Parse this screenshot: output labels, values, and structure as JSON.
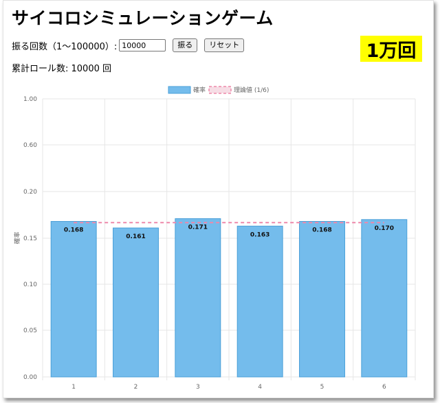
{
  "page": {
    "title": "サイコロシミュレーションゲーム",
    "roll_label": "振る回数（1〜100000）:",
    "roll_value": "10000",
    "roll_button": "振る",
    "reset_button": "リセット",
    "total_text": "累計ロール数: 10000 回",
    "badge_text": "1万回"
  },
  "colors": {
    "bar_fill": "#74bcec",
    "bar_border": "#4a9fd8",
    "theory_line": "#ee88aa",
    "badge_bg": "#ffff00"
  },
  "chart_data": {
    "type": "bar",
    "categories": [
      "1",
      "2",
      "3",
      "4",
      "5",
      "6"
    ],
    "series": [
      {
        "name": "確率",
        "values": [
          0.168,
          0.161,
          0.171,
          0.163,
          0.168,
          0.17
        ]
      }
    ],
    "data_labels": [
      "0.168",
      "0.161",
      "0.171",
      "0.163",
      "0.168",
      "0.170"
    ],
    "theory": {
      "name": "理論値 (1/6)",
      "value": 0.1667
    },
    "ylabel": "確率",
    "xlabel": "",
    "ylim": [
      0,
      1
    ],
    "y_ticks": [
      {
        "label": "1.00",
        "value": 1.0
      },
      {
        "label": "0.60",
        "value": 0.6
      },
      {
        "label": "0.20",
        "value": 0.2
      },
      {
        "label": "0.15",
        "value": 0.15
      },
      {
        "label": "0.10",
        "value": 0.1
      },
      {
        "label": "0.05",
        "value": 0.05
      },
      {
        "label": "0.00",
        "value": 0.0
      }
    ],
    "grid": true,
    "legend_position": "top-center"
  }
}
